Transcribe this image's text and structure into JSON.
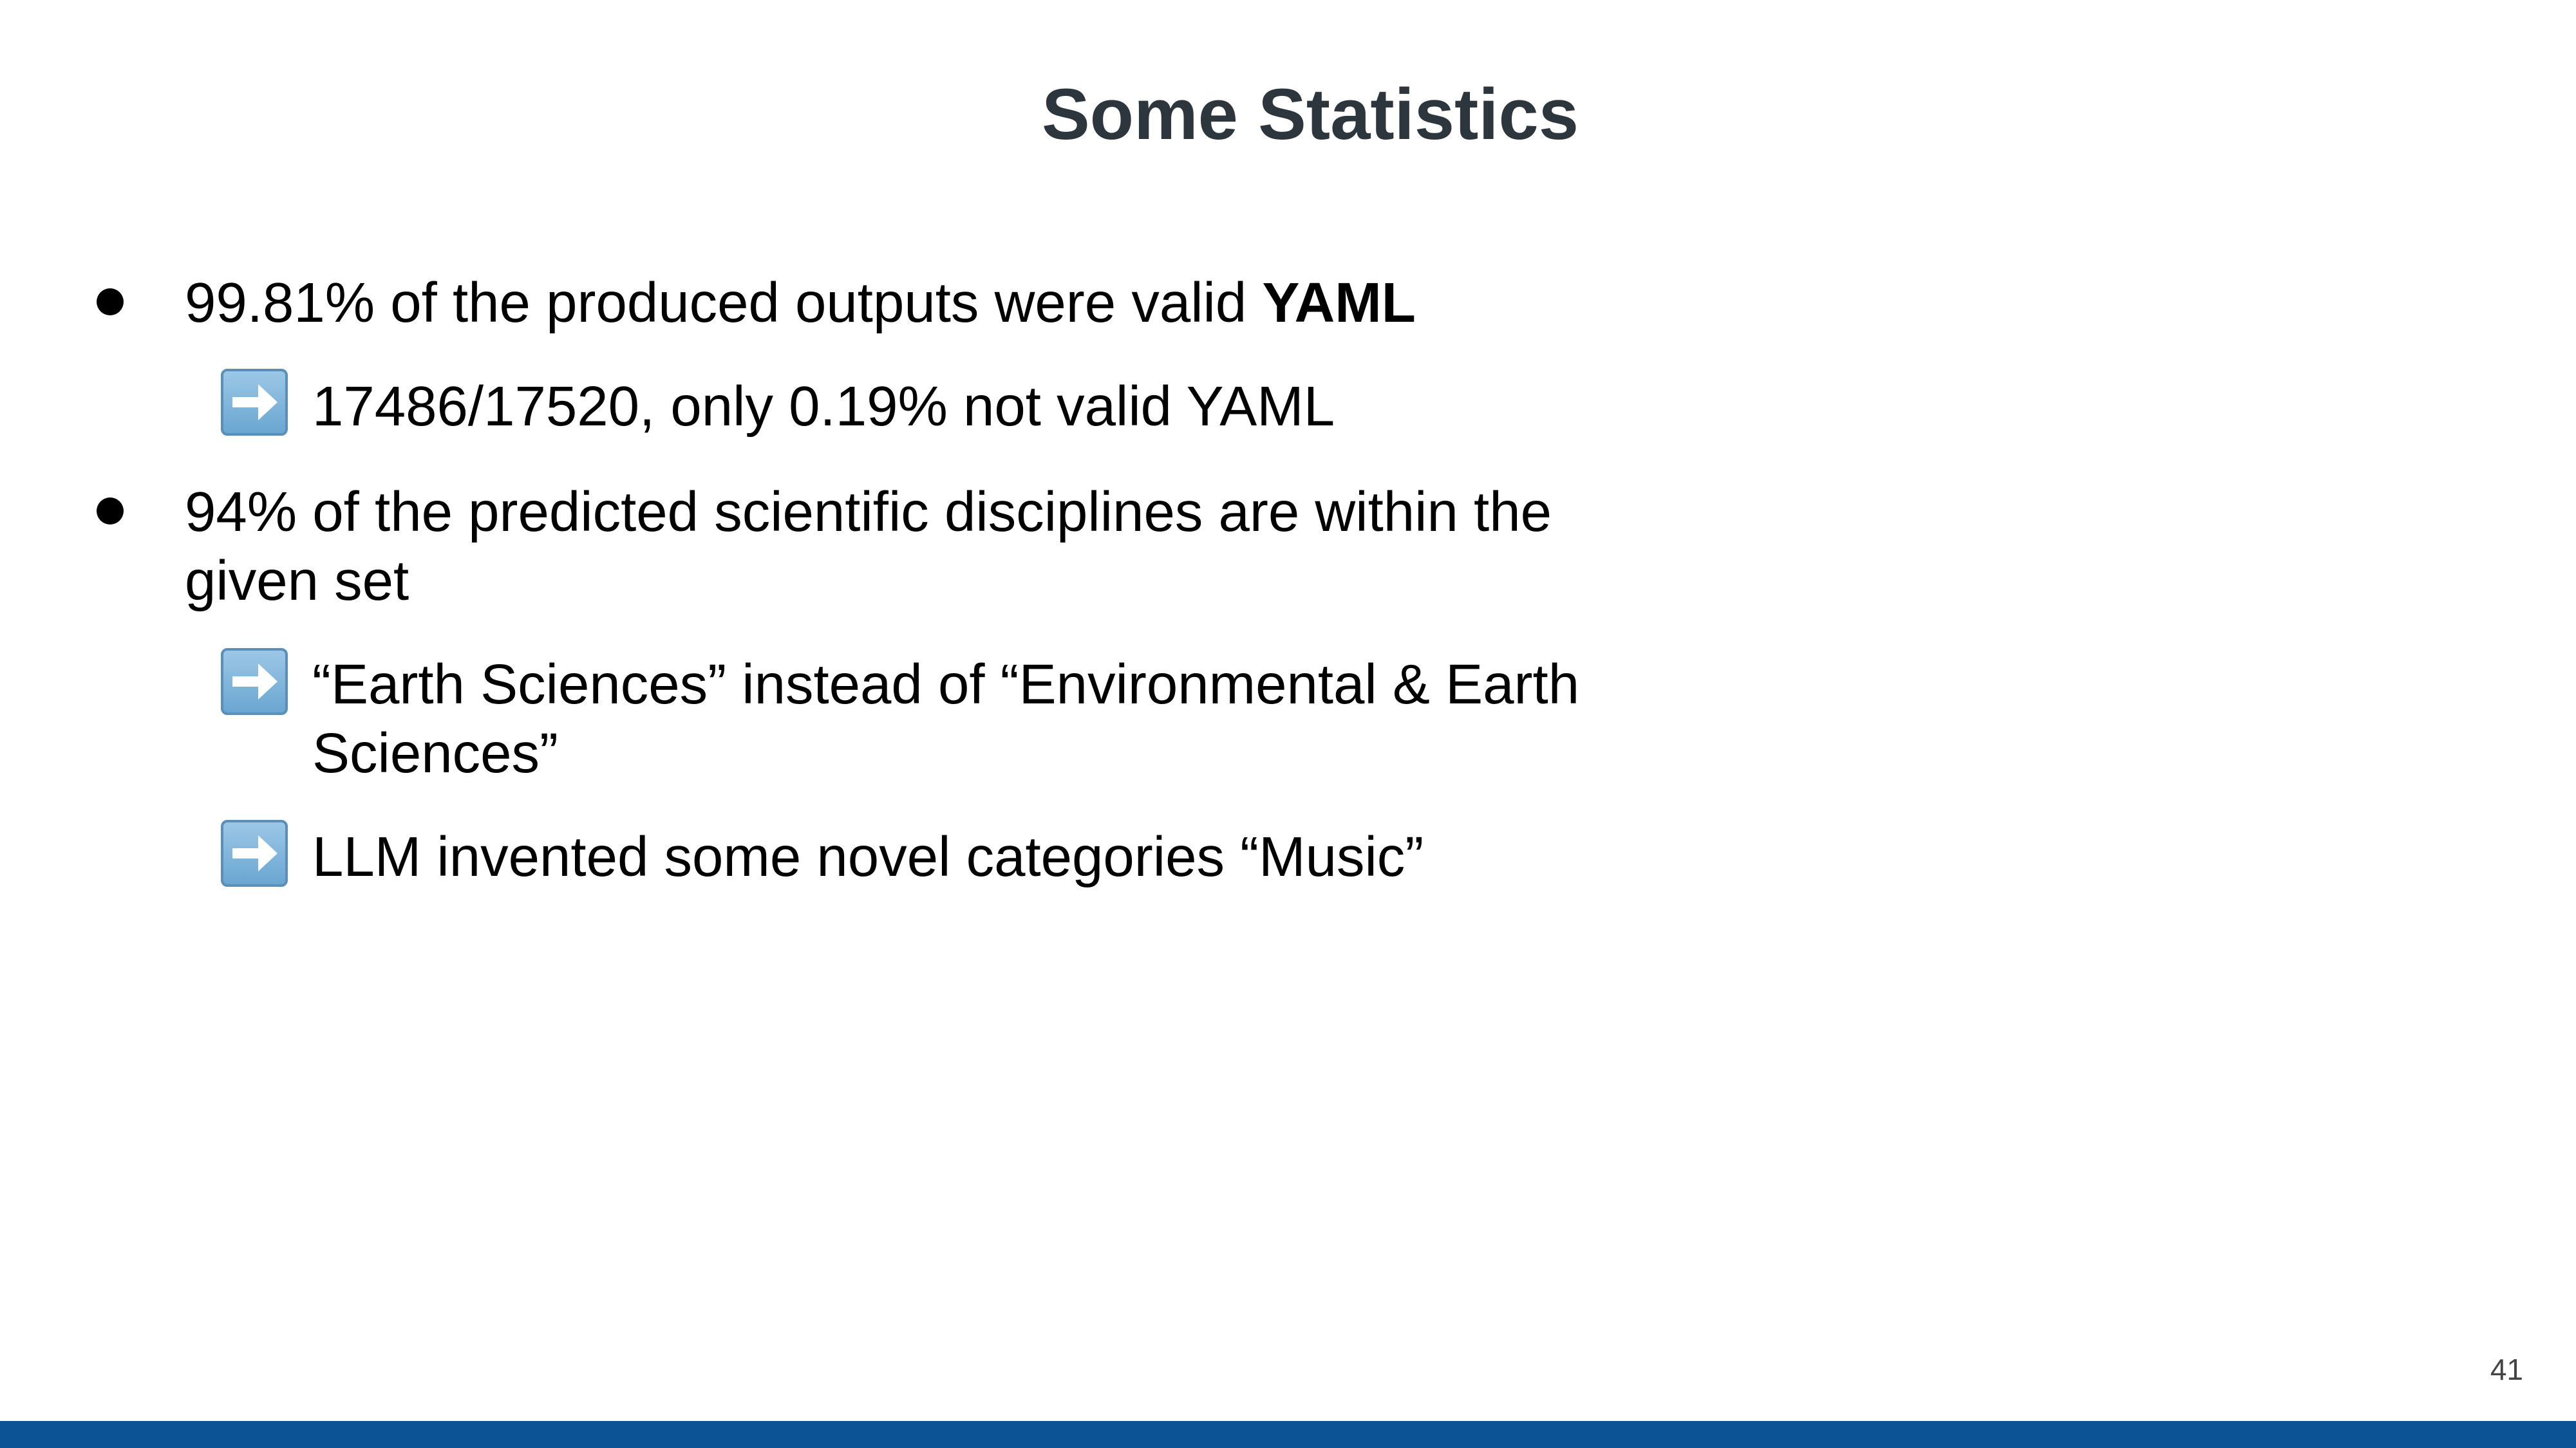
{
  "slide": {
    "title": "Some Statistics",
    "page_number": "41",
    "bullets": [
      {
        "text_prefix": "99.81% of the produced outputs were valid ",
        "text_bold": "YAML",
        "subitems": [
          {
            "icon": "right-arrow-icon",
            "lines": [
              "17486/17520, only 0.19% not valid YAML"
            ]
          }
        ]
      },
      {
        "lines": [
          "94% of the predicted scientific disciplines are within the",
          "given set"
        ],
        "subitems": [
          {
            "icon": "right-arrow-icon",
            "lines": [
              "“Earth Sciences” instead of “Environmental & Earth",
              "Sciences”"
            ]
          },
          {
            "icon": "right-arrow-icon",
            "lines": [
              "LLM invented some novel categories “Music”"
            ]
          }
        ]
      }
    ],
    "colors": {
      "title": "#2e363d",
      "footer_bar": "#0b5394",
      "arrow_icon": "#7fb5dc"
    }
  }
}
